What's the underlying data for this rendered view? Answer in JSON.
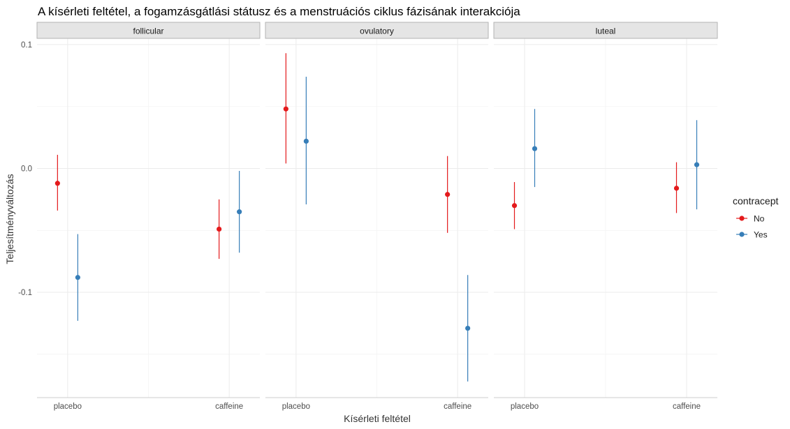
{
  "chart_data": {
    "type": "pointrange",
    "title": "A kísérleti feltétel, a fogamzásgátlási státusz és a menstruációs ciklus fázisának interakciója",
    "xlabel": "Kísérleti feltétel",
    "ylabel": "Teljesítményváltozás",
    "ylim": [
      -0.185,
      0.105
    ],
    "yticks": [
      0.1,
      0.0,
      -0.1
    ],
    "ytick_labels": [
      "0.1",
      "0.0",
      "-0.1"
    ],
    "categories": [
      "placebo",
      "caffeine"
    ],
    "facets": [
      "follicular",
      "ovulatory",
      "luteal"
    ],
    "legend": {
      "title": "contracept",
      "position": "right",
      "entries": [
        {
          "label": "No",
          "color": "#e41a1c"
        },
        {
          "label": "Yes",
          "color": "#377eb8"
        }
      ]
    },
    "grid": true,
    "series": [
      {
        "name": "No",
        "color": "#e41a1c",
        "points": [
          {
            "facet": "follicular",
            "x": "placebo",
            "y": -0.012,
            "ymin": -0.034,
            "ymax": 0.011
          },
          {
            "facet": "follicular",
            "x": "caffeine",
            "y": -0.049,
            "ymin": -0.073,
            "ymax": -0.025
          },
          {
            "facet": "ovulatory",
            "x": "placebo",
            "y": 0.048,
            "ymin": 0.004,
            "ymax": 0.093
          },
          {
            "facet": "ovulatory",
            "x": "caffeine",
            "y": -0.021,
            "ymin": -0.052,
            "ymax": 0.01
          },
          {
            "facet": "luteal",
            "x": "placebo",
            "y": -0.03,
            "ymin": -0.049,
            "ymax": -0.011
          },
          {
            "facet": "luteal",
            "x": "caffeine",
            "y": -0.016,
            "ymin": -0.036,
            "ymax": 0.005
          }
        ]
      },
      {
        "name": "Yes",
        "color": "#377eb8",
        "points": [
          {
            "facet": "follicular",
            "x": "placebo",
            "y": -0.088,
            "ymin": -0.123,
            "ymax": -0.053
          },
          {
            "facet": "follicular",
            "x": "caffeine",
            "y": -0.035,
            "ymin": -0.068,
            "ymax": -0.002
          },
          {
            "facet": "ovulatory",
            "x": "placebo",
            "y": 0.022,
            "ymin": -0.029,
            "ymax": 0.074
          },
          {
            "facet": "ovulatory",
            "x": "caffeine",
            "y": -0.129,
            "ymin": -0.172,
            "ymax": -0.086
          },
          {
            "facet": "luteal",
            "x": "placebo",
            "y": 0.016,
            "ymin": -0.015,
            "ymax": 0.048
          },
          {
            "facet": "luteal",
            "x": "caffeine",
            "y": 0.003,
            "ymin": -0.033,
            "ymax": 0.039
          }
        ]
      }
    ]
  }
}
